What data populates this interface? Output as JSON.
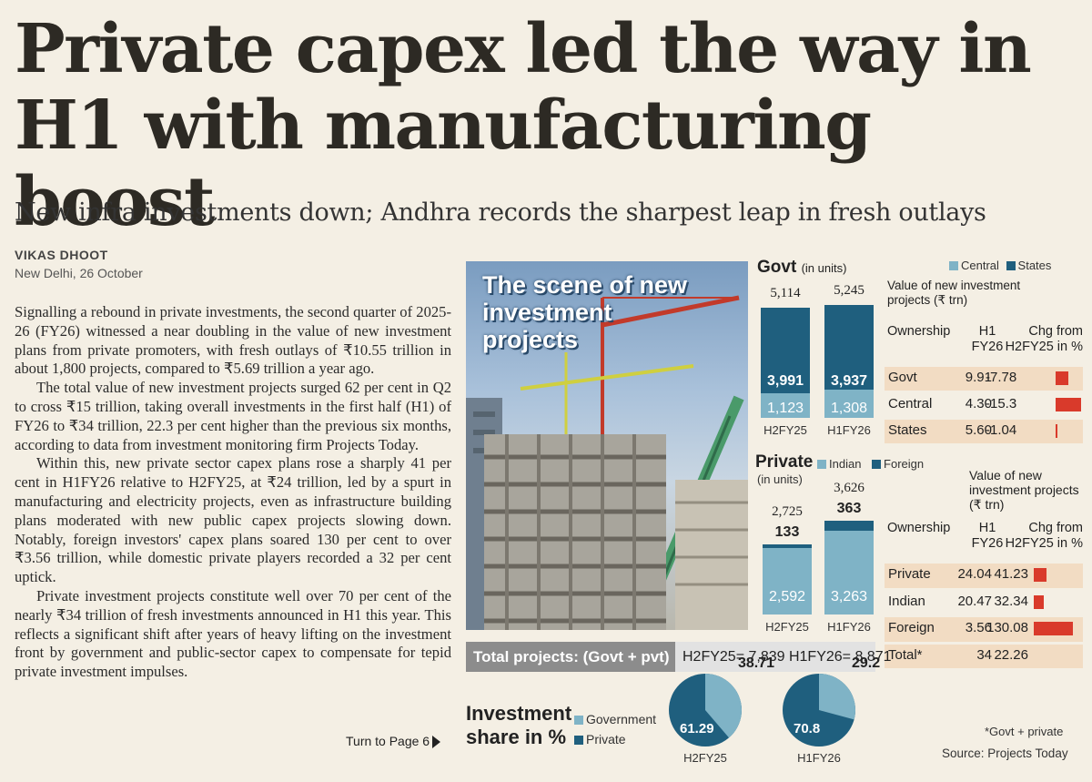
{
  "headline": "Private capex led the way in H1 with manufacturing boost",
  "deck": "New infra investments down; Andhra records the sharpest leap in fresh outlays",
  "byline": "VIKAS DHOOT",
  "dateline": "New Delhi, 26 October",
  "article": [
    "Signalling a rebound in private investments, the second quarter of 2025-26 (FY26) witnessed a near doubling in the value of new investment plans from private promoters, with fresh outlays of ₹10.55 trillion in about 1,800 projects, compared to ₹5.69 trillion a year ago.",
    "The total value of new investment projects surged 62 per cent in Q2 to cross ₹15 trillion, taking overall investments in the first half (H1) of FY26 to ₹34 trillion, 22.3 per cent higher than the previous six months, according to data from investment monitoring firm Projects Today.",
    "Within this, new private sector capex plans rose a sharply 41 per cent in H1FY26 relative to H2FY25, at ₹24 trillion, led by a spurt in manufacturing and electricity projects, even as infrastructure building plans moderated with new public capex projects slowing down. Notably, foreign investors' capex plans soared 130 per cent to over ₹3.56 trillion, while domestic private players recorded a 32 per cent uptick.",
    "Private investment projects constitute well over 70 per cent of the nearly ₹34 trillion of fresh investments announced in H1 this year. This reflects a significant shift after years of heavy lifting on the investment front by government and public-sector capex to compensate for tepid private investment impulses."
  ],
  "turn_page": "Turn to Page 6",
  "photo_title": "The scene of new investment projects",
  "colors": {
    "light": "#7fb3c6",
    "dark": "#1f5f7e",
    "red": "#d93a2b",
    "highlight": "#f2dcc3"
  },
  "govt": {
    "title": "Govt",
    "unit": "(in units)",
    "legend": [
      "Central",
      "States"
    ],
    "bars": [
      {
        "period": "H2FY25",
        "total": "5,114",
        "states": "3,991",
        "central": "1,123"
      },
      {
        "period": "H1FY26",
        "total": "5,245",
        "states": "3,937",
        "central": "1,308"
      }
    ]
  },
  "private": {
    "title": "Private",
    "unit": "(in units)",
    "legend": [
      "Indian",
      "Foreign"
    ],
    "bars": [
      {
        "period": "H2FY25",
        "total": "2,725",
        "foreign": "133",
        "indian": "2,592"
      },
      {
        "period": "H1FY26",
        "total": "3,626",
        "foreign": "363",
        "indian": "3,263"
      }
    ]
  },
  "govt_table": {
    "title": "Value of new investment projects (₹ trn)",
    "headers": [
      "Ownership",
      "H1 FY26",
      "Chg from H2FY25 in %"
    ],
    "rows": [
      {
        "owner": "Govt",
        "h1": "9.91",
        "chg": "-7.78",
        "pct": -7.78
      },
      {
        "owner": "Central",
        "h1": "4.30",
        "chg": "-15.3",
        "pct": -15.3
      },
      {
        "owner": "States",
        "h1": "5.60",
        "chg": "-1.04",
        "pct": -1.04
      }
    ]
  },
  "private_table": {
    "title": "Value of new investment projects (₹ trn)",
    "headers": [
      "Ownership",
      "H1 FY26",
      "Chg from H2FY25 in %"
    ],
    "rows": [
      {
        "owner": "Private",
        "h1": "24.04",
        "chg": "41.23",
        "pct": 41.23
      },
      {
        "owner": "Indian",
        "h1": "20.47",
        "chg": "32.34",
        "pct": 32.34
      },
      {
        "owner": "Foreign",
        "h1": "3.56",
        "chg": "130.08",
        "pct": 130.08
      },
      {
        "owner": "Total*",
        "h1": "34",
        "chg": "22.26",
        "pct": 22.26
      }
    ]
  },
  "total_projects": {
    "label": "Total projects: (Govt + pvt)",
    "values": "H2FY25= 7,839  H1FY26= 8,871"
  },
  "investment_share": {
    "title": "Investment share in %",
    "legend": [
      "Government",
      "Private"
    ],
    "pies": [
      {
        "period": "H2FY25",
        "government": 38.71,
        "private": 61.29,
        "gov_label": "38.71",
        "pvt_label": "61.29"
      },
      {
        "period": "H1FY26",
        "government": 29.2,
        "private": 70.8,
        "gov_label": "29.2",
        "pvt_label": "70.8"
      }
    ]
  },
  "footnote": "*Govt + private",
  "source": "Source: Projects Today",
  "chart_data": [
    {
      "type": "bar",
      "title": "Govt (in units)",
      "categories": [
        "H2FY25",
        "H1FY26"
      ],
      "series": [
        {
          "name": "Central",
          "values": [
            1123,
            1308
          ]
        },
        {
          "name": "States",
          "values": [
            3991,
            3937
          ]
        }
      ],
      "totals": [
        5114,
        5245
      ]
    },
    {
      "type": "bar",
      "title": "Private (in units)",
      "categories": [
        "H2FY25",
        "H1FY26"
      ],
      "series": [
        {
          "name": "Indian",
          "values": [
            2592,
            3263
          ]
        },
        {
          "name": "Foreign",
          "values": [
            133,
            363
          ]
        }
      ],
      "totals": [
        2725,
        3626
      ]
    },
    {
      "type": "pie",
      "title": "Investment share in % — H2FY25",
      "labels": [
        "Government",
        "Private"
      ],
      "values": [
        38.71,
        61.29
      ]
    },
    {
      "type": "pie",
      "title": "Investment share in % — H1FY26",
      "labels": [
        "Government",
        "Private"
      ],
      "values": [
        29.2,
        70.8
      ]
    }
  ]
}
